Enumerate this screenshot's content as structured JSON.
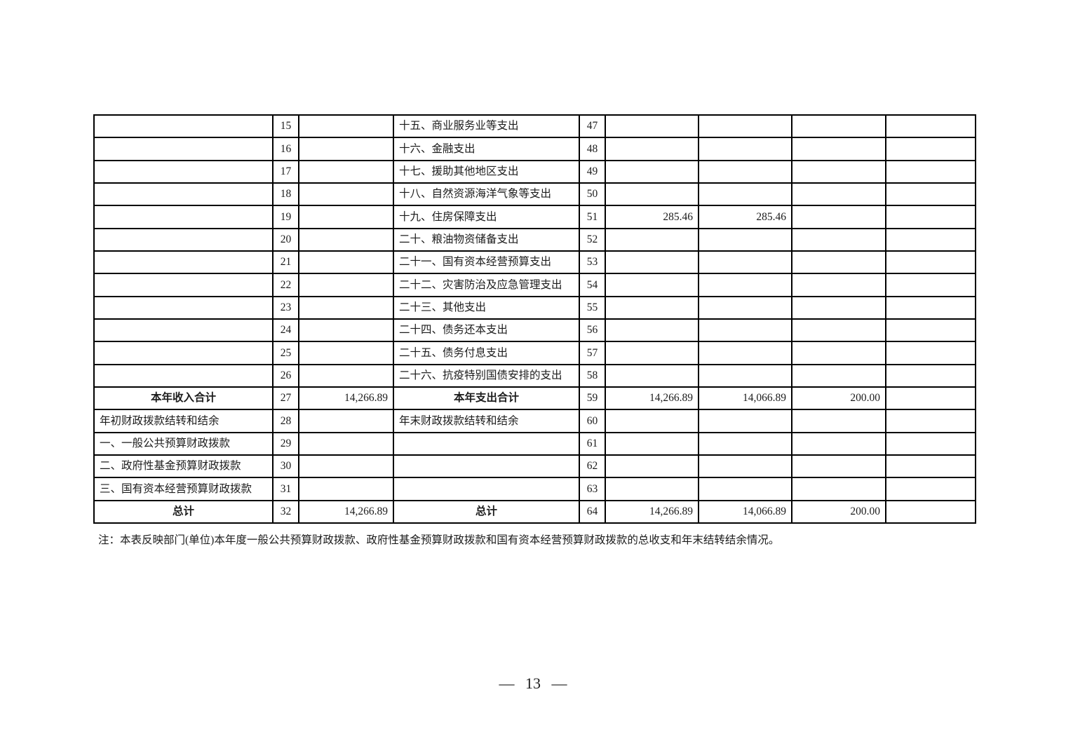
{
  "document": {
    "note": "注：本表反映部门(单位)本年度一般公共预算财政拨款、政府性基金预算财政拨款和国有资本经营预算财政拨款的总收支和年末结转结余情况。",
    "page_number": "— 13 —"
  },
  "table": {
    "rows": [
      {
        "left_label": "",
        "left_no": "15",
        "left_amount": "",
        "right_label": "十五、商业服务业等支出",
        "right_no": "47",
        "amt1": "",
        "amt2": "",
        "amt3": "",
        "amt4": "",
        "emphasis": false
      },
      {
        "left_label": "",
        "left_no": "16",
        "left_amount": "",
        "right_label": "十六、金融支出",
        "right_no": "48",
        "amt1": "",
        "amt2": "",
        "amt3": "",
        "amt4": "",
        "emphasis": false
      },
      {
        "left_label": "",
        "left_no": "17",
        "left_amount": "",
        "right_label": "十七、援助其他地区支出",
        "right_no": "49",
        "amt1": "",
        "amt2": "",
        "amt3": "",
        "amt4": "",
        "emphasis": false
      },
      {
        "left_label": "",
        "left_no": "18",
        "left_amount": "",
        "right_label": "十八、自然资源海洋气象等支出",
        "right_no": "50",
        "amt1": "",
        "amt2": "",
        "amt3": "",
        "amt4": "",
        "emphasis": false
      },
      {
        "left_label": "",
        "left_no": "19",
        "left_amount": "",
        "right_label": "十九、住房保障支出",
        "right_no": "51",
        "amt1": "285.46",
        "amt2": "285.46",
        "amt3": "",
        "amt4": "",
        "emphasis": false
      },
      {
        "left_label": "",
        "left_no": "20",
        "left_amount": "",
        "right_label": "二十、粮油物资储备支出",
        "right_no": "52",
        "amt1": "",
        "amt2": "",
        "amt3": "",
        "amt4": "",
        "emphasis": false
      },
      {
        "left_label": "",
        "left_no": "21",
        "left_amount": "",
        "right_label": "二十一、国有资本经营预算支出",
        "right_no": "53",
        "amt1": "",
        "amt2": "",
        "amt3": "",
        "amt4": "",
        "emphasis": false
      },
      {
        "left_label": "",
        "left_no": "22",
        "left_amount": "",
        "right_label": "二十二、灾害防治及应急管理支出",
        "right_no": "54",
        "amt1": "",
        "amt2": "",
        "amt3": "",
        "amt4": "",
        "emphasis": false
      },
      {
        "left_label": "",
        "left_no": "23",
        "left_amount": "",
        "right_label": "二十三、其他支出",
        "right_no": "55",
        "amt1": "",
        "amt2": "",
        "amt3": "",
        "amt4": "",
        "emphasis": false
      },
      {
        "left_label": "",
        "left_no": "24",
        "left_amount": "",
        "right_label": "二十四、债务还本支出",
        "right_no": "56",
        "amt1": "",
        "amt2": "",
        "amt3": "",
        "amt4": "",
        "emphasis": false
      },
      {
        "left_label": "",
        "left_no": "25",
        "left_amount": "",
        "right_label": "二十五、债务付息支出",
        "right_no": "57",
        "amt1": "",
        "amt2": "",
        "amt3": "",
        "amt4": "",
        "emphasis": false
      },
      {
        "left_label": "",
        "left_no": "26",
        "left_amount": "",
        "right_label": "二十六、抗疫特别国债安排的支出",
        "right_no": "58",
        "amt1": "",
        "amt2": "",
        "amt3": "",
        "amt4": "",
        "emphasis": false
      },
      {
        "left_label": "本年收入合计",
        "left_no": "27",
        "left_amount": "14,266.89",
        "right_label": "本年支出合计",
        "right_no": "59",
        "amt1": "14,266.89",
        "amt2": "14,066.89",
        "amt3": "200.00",
        "amt4": "",
        "emphasis": true
      },
      {
        "left_label": "年初财政拨款结转和结余",
        "left_no": "28",
        "left_amount": "",
        "right_label": "年末财政拨款结转和结余",
        "right_no": "60",
        "amt1": "",
        "amt2": "",
        "amt3": "",
        "amt4": "",
        "emphasis": false
      },
      {
        "left_label": "一、一般公共预算财政拨款",
        "left_no": "29",
        "left_amount": "",
        "right_label": "",
        "right_no": "61",
        "amt1": "",
        "amt2": "",
        "amt3": "",
        "amt4": "",
        "emphasis": false
      },
      {
        "left_label": "二、政府性基金预算财政拨款",
        "left_no": "30",
        "left_amount": "",
        "right_label": "",
        "right_no": "62",
        "amt1": "",
        "amt2": "",
        "amt3": "",
        "amt4": "",
        "emphasis": false
      },
      {
        "left_label": "三、国有资本经营预算财政拨款",
        "left_no": "31",
        "left_amount": "",
        "right_label": "",
        "right_no": "63",
        "amt1": "",
        "amt2": "",
        "amt3": "",
        "amt4": "",
        "emphasis": false
      },
      {
        "left_label": "总计",
        "left_no": "32",
        "left_amount": "14,266.89",
        "right_label": "总计",
        "right_no": "64",
        "amt1": "14,266.89",
        "amt2": "14,066.89",
        "amt3": "200.00",
        "amt4": "",
        "emphasis": true
      }
    ]
  }
}
